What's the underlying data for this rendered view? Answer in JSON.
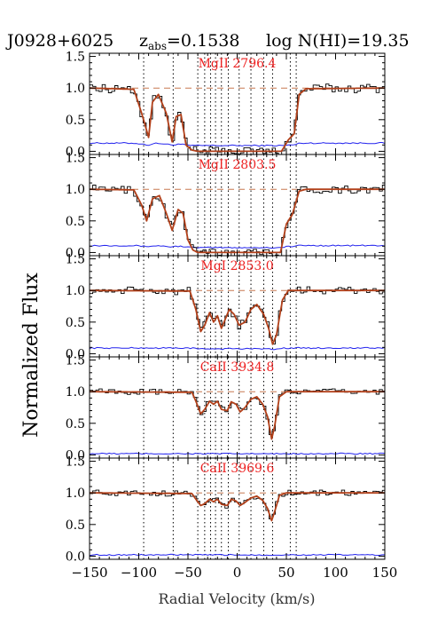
{
  "header": {
    "object": "J0928+6025",
    "z_prefix": "z",
    "z_sub": "abs",
    "z_value": "=0.1538",
    "logn": "log N(HI)=19.35"
  },
  "chart_data": {
    "type": "line",
    "title": "J0928+6025  z_abs=0.1538  log N(HI)=19.35",
    "xlabel": "Radial Velocity (km/s)",
    "ylabel": "Normalized Flux",
    "xlim": [
      -150,
      150
    ],
    "ylim": [
      -0.05,
      1.55
    ],
    "xticks": [
      -150,
      -100,
      -50,
      0,
      50,
      100,
      150
    ],
    "yticks": [
      0.0,
      0.5,
      1.0,
      1.5
    ],
    "component_velocities": [
      -95,
      -65,
      -40,
      -33,
      -27,
      -22,
      -16,
      -9,
      2,
      14,
      27,
      36,
      54,
      60
    ],
    "colors": {
      "data": "#000000",
      "fit": "#b2401a",
      "error": "#2222ee",
      "label": "#ee2222",
      "continuum": "#c87850",
      "components": "#000000"
    },
    "panels": [
      {
        "ion": "MgII 2796.4",
        "continuum_ref": 1.0,
        "error_level": 0.13,
        "velocity": [
          -150,
          -105,
          -97,
          -90,
          -86,
          -80,
          -72,
          -66,
          -62,
          -57,
          -52,
          -46,
          -40,
          0,
          45,
          52,
          58,
          63,
          70,
          150
        ],
        "flux": [
          1.0,
          0.98,
          0.6,
          0.22,
          0.78,
          0.9,
          0.6,
          0.15,
          0.55,
          0.58,
          0.1,
          0.02,
          0.0,
          0.0,
          0.0,
          0.18,
          0.28,
          0.9,
          0.99,
          1.0
        ]
      },
      {
        "ion": "MgII 2803.5",
        "continuum_ref": 1.0,
        "error_level": 0.11,
        "velocity": [
          -150,
          -105,
          -97,
          -92,
          -86,
          -79,
          -72,
          -66,
          -60,
          -55,
          -50,
          -45,
          -40,
          0,
          44,
          50,
          56,
          63,
          70,
          150
        ],
        "flux": [
          1.0,
          0.99,
          0.75,
          0.5,
          0.85,
          0.9,
          0.62,
          0.35,
          0.68,
          0.62,
          0.2,
          0.04,
          0.0,
          0.0,
          0.0,
          0.45,
          0.6,
          0.97,
          1.0,
          1.0
        ]
      },
      {
        "ion": "MgI 2853.0",
        "continuum_ref": 1.0,
        "error_level": 0.09,
        "velocity": [
          -150,
          -48,
          -42,
          -37,
          -33,
          -28,
          -24,
          -20,
          -16,
          -12,
          -8,
          -3,
          2,
          8,
          14,
          20,
          27,
          32,
          36,
          40,
          46,
          52,
          150
        ],
        "flux": [
          1.0,
          0.99,
          0.7,
          0.35,
          0.45,
          0.65,
          0.5,
          0.6,
          0.4,
          0.55,
          0.7,
          0.62,
          0.45,
          0.5,
          0.7,
          0.78,
          0.62,
          0.4,
          0.15,
          0.3,
          0.85,
          1.0,
          1.0
        ]
      },
      {
        "ion": "CaII 3934.8",
        "continuum_ref": 1.0,
        "error_level": 0.02,
        "velocity": [
          -150,
          -46,
          -42,
          -37,
          -33,
          -28,
          -24,
          -20,
          -16,
          -10,
          -6,
          -1,
          3,
          8,
          14,
          20,
          26,
          31,
          35,
          38,
          43,
          50,
          150
        ],
        "flux": [
          1.0,
          0.99,
          0.85,
          0.65,
          0.72,
          0.85,
          0.8,
          0.85,
          0.72,
          0.7,
          0.84,
          0.8,
          0.68,
          0.75,
          0.88,
          0.92,
          0.8,
          0.6,
          0.25,
          0.45,
          0.92,
          1.0,
          1.0
        ]
      },
      {
        "ion": "CaII 3969.6",
        "continuum_ref": 1.0,
        "error_level": 0.02,
        "velocity": [
          -150,
          -46,
          -42,
          -37,
          -33,
          -28,
          -24,
          -20,
          -16,
          -10,
          -6,
          -1,
          3,
          8,
          14,
          20,
          26,
          31,
          35,
          38,
          43,
          50,
          150
        ],
        "flux": [
          1.0,
          0.99,
          0.9,
          0.8,
          0.83,
          0.9,
          0.86,
          0.9,
          0.82,
          0.8,
          0.9,
          0.87,
          0.8,
          0.85,
          0.92,
          0.95,
          0.88,
          0.75,
          0.56,
          0.7,
          0.96,
          1.0,
          1.0
        ]
      }
    ]
  }
}
